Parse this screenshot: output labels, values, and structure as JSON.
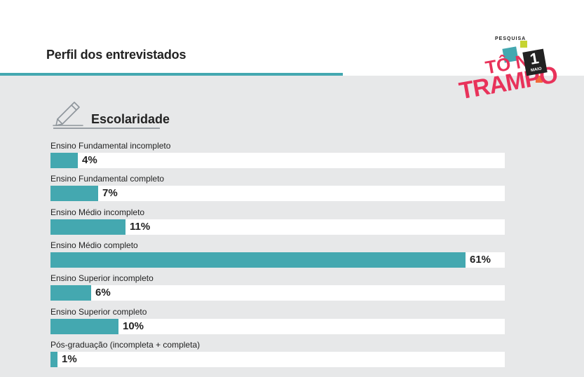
{
  "page": {
    "title": "Perfil dos entrevistados"
  },
  "logo": {
    "small_text": "PESQUISA",
    "line1": "TÔ NO",
    "line2": "TRAMPO",
    "badge_number": "1",
    "badge_text": "MAIO"
  },
  "section": {
    "title": "Escolaridade",
    "icon": "pencil-icon"
  },
  "colors": {
    "bar": "#44a8b0",
    "track": "#ffffff",
    "background": "#e7e8e9",
    "logo_accent": "#e8325a"
  },
  "chart_data": {
    "type": "bar",
    "orientation": "horizontal",
    "categories": [
      "Ensino Fundamental incompleto",
      "Ensino Fundamental completo",
      "Ensino Médio incompleto",
      "Ensino Médio completo",
      "Ensino Superior incompleto",
      "Ensino Superior completo",
      "Pós-graduação (incompleta + completa)"
    ],
    "values": [
      4,
      7,
      11,
      61,
      6,
      10,
      1
    ],
    "labels": [
      "4%",
      "7%",
      "11%",
      "61%",
      "6%",
      "10%",
      "1%"
    ],
    "title": "Escolaridade",
    "xlabel": "",
    "ylabel": "",
    "xlim": [
      0,
      61
    ],
    "grid": false,
    "legend": "none"
  }
}
